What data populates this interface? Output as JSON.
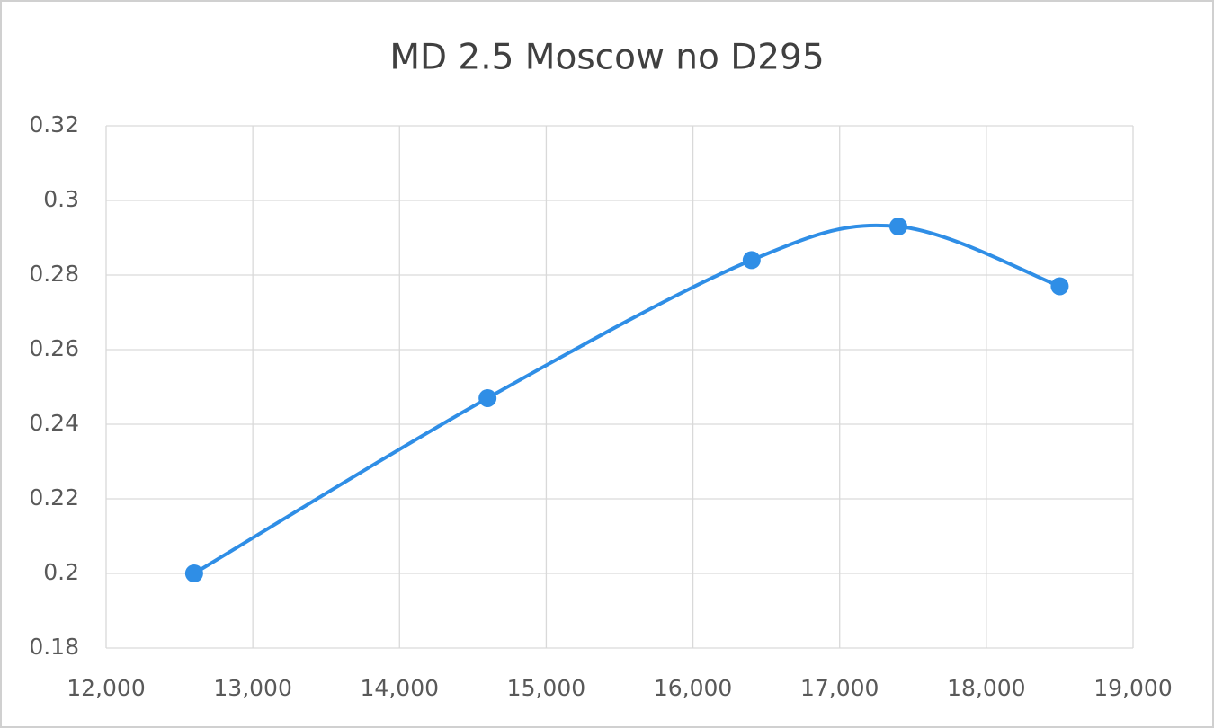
{
  "chart_data": {
    "type": "line",
    "title": "MD 2.5 Moscow no D295",
    "smooth": true,
    "grid": true,
    "series": [
      {
        "color": "#2f8ee6",
        "x": [
          12600,
          14600,
          16400,
          17400,
          18500
        ],
        "values": [
          0.2,
          0.247,
          0.284,
          0.293,
          0.277
        ]
      }
    ],
    "xlim": [
      12000,
      19000
    ],
    "xticks": [
      {
        "value": 12000,
        "label": "12,000"
      },
      {
        "value": 13000,
        "label": "13,000"
      },
      {
        "value": 14000,
        "label": "14,000"
      },
      {
        "value": 15000,
        "label": "15,000"
      },
      {
        "value": 16000,
        "label": "16,000"
      },
      {
        "value": 17000,
        "label": "17,000"
      },
      {
        "value": 18000,
        "label": "18,000"
      },
      {
        "value": 19000,
        "label": "19,000"
      }
    ],
    "ylim": [
      0.18,
      0.32
    ],
    "yticks": [
      0.18,
      0.2,
      0.22,
      0.24,
      0.26,
      0.28,
      0.3,
      0.32
    ]
  }
}
